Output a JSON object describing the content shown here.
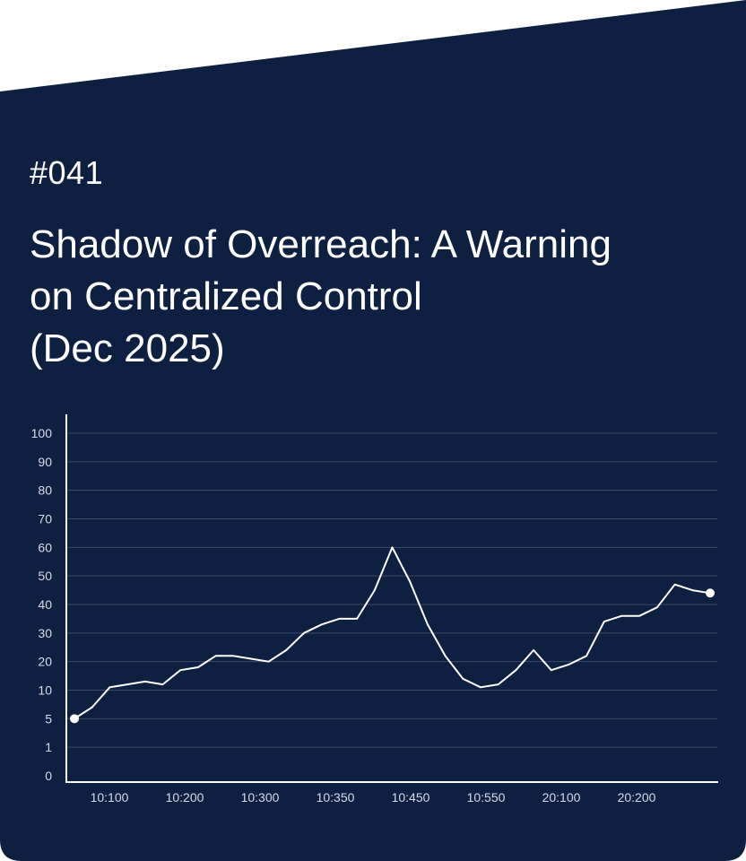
{
  "header": {
    "issue": "#041",
    "title_lines": [
      "Shadow of Overreach: A Warning",
      "on Centralized Control",
      "(Dec 2025)"
    ]
  },
  "colors": {
    "background": "#0e2042",
    "accent": "#ffffff",
    "gridline": "#3a4a66",
    "tick_label": "#d6dbe6"
  },
  "chart_data": {
    "type": "line",
    "title": "",
    "xlabel": "",
    "ylabel": "",
    "y_ticks": [
      "0",
      "1",
      "5",
      "10",
      "20",
      "30",
      "40",
      "50",
      "60",
      "70",
      "80",
      "90",
      "100"
    ],
    "x_ticks": [
      "10:100",
      "10:200",
      "10:300",
      "10:350",
      "10:450",
      "10:550",
      "20:100",
      "20:200"
    ],
    "grid": true,
    "series": [
      {
        "values": [
          5,
          7,
          11,
          12,
          13,
          12,
          17,
          18,
          22,
          22,
          21,
          20,
          24,
          30,
          33,
          35,
          35,
          45,
          60,
          48,
          33,
          22,
          14,
          11,
          12,
          17,
          24,
          17,
          19,
          22,
          34,
          36,
          36,
          39,
          47,
          45,
          44
        ]
      }
    ]
  }
}
